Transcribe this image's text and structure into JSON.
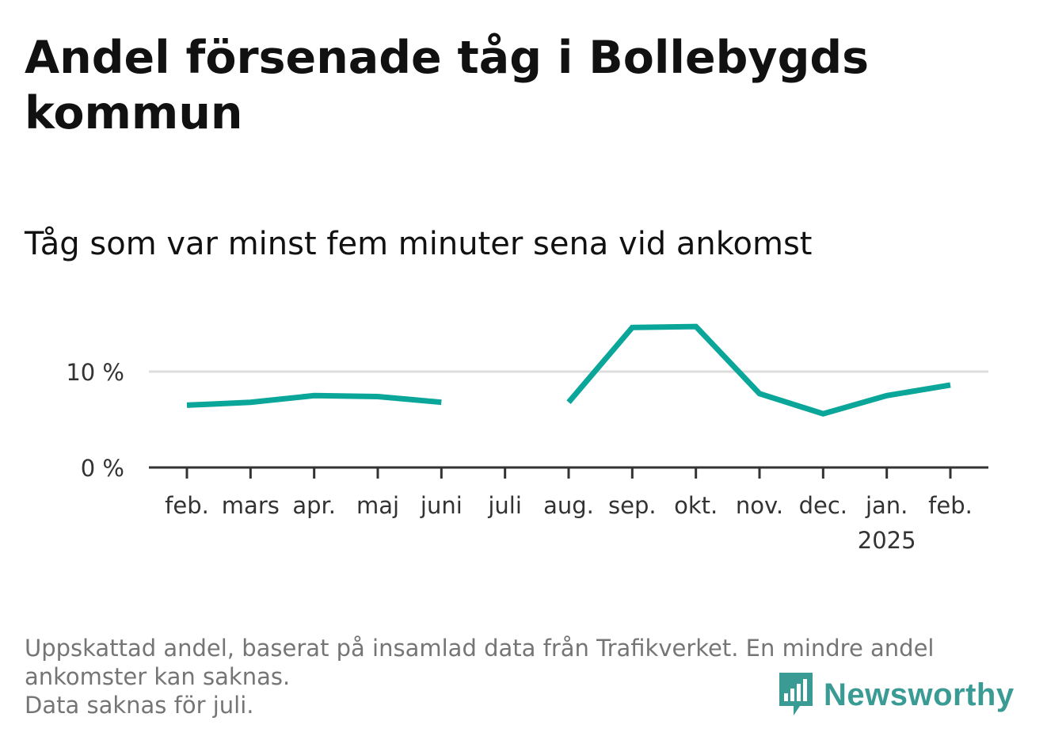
{
  "title": "Andel försenade tåg i Bollebygds kommun",
  "subtitle": "Tåg som var minst fem minuter sena vid ankomst",
  "footnote": {
    "line1": "Uppskattad andel, baserat på insamlad data från Trafikverket. En mindre andel",
    "line2": "ankomster kan saknas.",
    "line3": "Data saknas för juli."
  },
  "brand": {
    "name": "Newsworthy",
    "icon": "newsworthy-logo-icon",
    "color": "#3a9b94"
  },
  "colors": {
    "line": "#0ba69a",
    "grid": "#dddddd",
    "axis": "#333333"
  },
  "chart_data": {
    "type": "line",
    "categories": [
      "feb.",
      "mars",
      "apr.",
      "maj",
      "juni",
      "juli",
      "aug.",
      "sep.",
      "okt.",
      "nov.",
      "dec.",
      "jan.",
      "feb."
    ],
    "category_sublabels": [
      "",
      "",
      "",
      "",
      "",
      "",
      "",
      "",
      "",
      "",
      "",
      "2025",
      ""
    ],
    "series": [
      {
        "values": [
          6.5,
          6.8,
          7.5,
          7.4,
          6.8,
          null,
          6.8,
          14.6,
          14.7,
          7.7,
          5.6,
          7.5,
          8.6
        ]
      }
    ],
    "yticks": [
      0,
      10
    ],
    "ytick_labels": [
      "0 %",
      "10 %"
    ],
    "ylim": [
      0,
      15
    ],
    "grid": true,
    "xlabel": "",
    "ylabel": ""
  }
}
